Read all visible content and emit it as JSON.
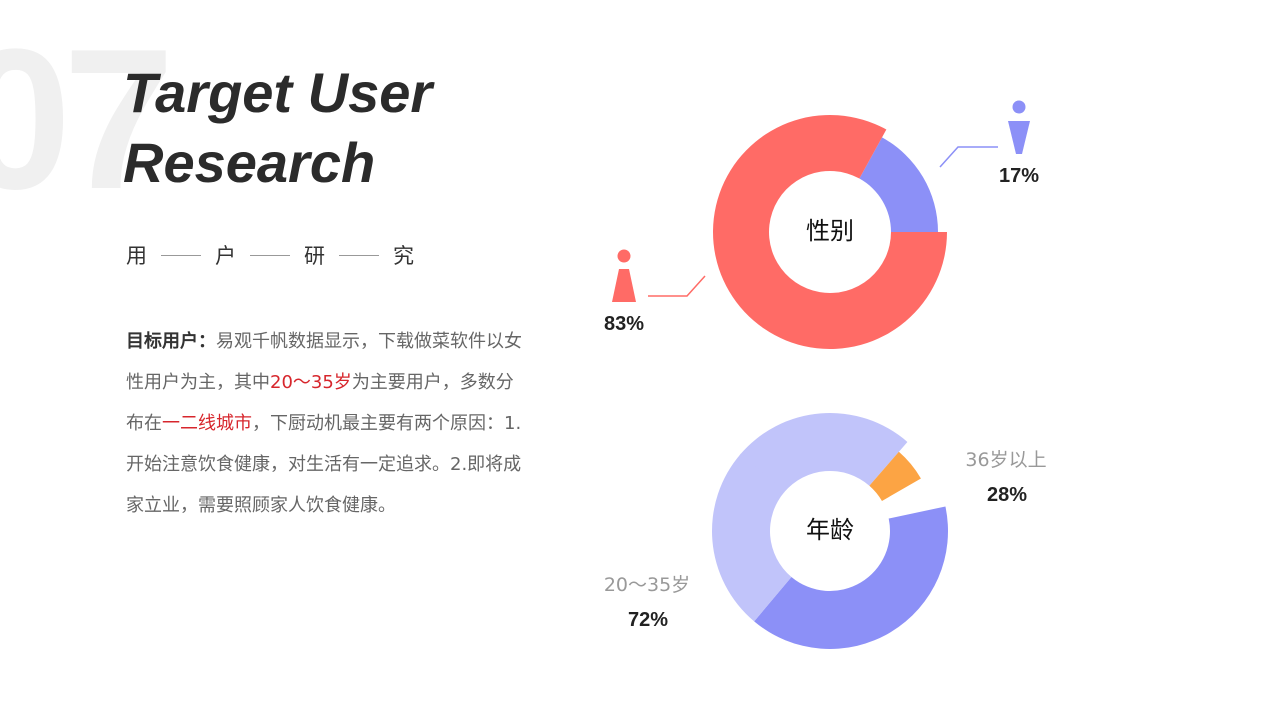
{
  "slide": {
    "number": "07",
    "title_line1": "Target User",
    "title_line2": "Research",
    "subtitle_chars": [
      "用",
      "户",
      "研",
      "究"
    ]
  },
  "body": {
    "lead": "目标用户：",
    "t1": "易观千帆数据显示，下载做菜软件以女性用户为主，其中",
    "hl1": "20～35岁",
    "t2": "为主要用户，多数分布在",
    "hl2": "一二线城市",
    "t3": "，下厨动机最主要有两个原因：1.开始注意饮食健康，对生活有一定追求。2.即将成家立业，需要照顾家人饮食健康。"
  },
  "colors": {
    "female": "#ff6b66",
    "male": "#8c90f7",
    "age_20_35": "#c1c4fa",
    "age_20_35_dark": "#8c90f7",
    "age_36_plus": "#fca444",
    "highlight": "#d7262c"
  },
  "chart_data": [
    {
      "type": "pie",
      "center_label": "性别",
      "slices": [
        {
          "name": "female",
          "value": 83,
          "label": "83%",
          "icon": "female-icon"
        },
        {
          "name": "male",
          "value": 17,
          "label": "17%",
          "icon": "male-icon"
        }
      ]
    },
    {
      "type": "pie",
      "center_label": "年龄",
      "slices": [
        {
          "name": "20～35岁",
          "value": 72,
          "label": "72%"
        },
        {
          "name": "36岁以上",
          "value": 28,
          "label": "28%"
        }
      ]
    }
  ]
}
